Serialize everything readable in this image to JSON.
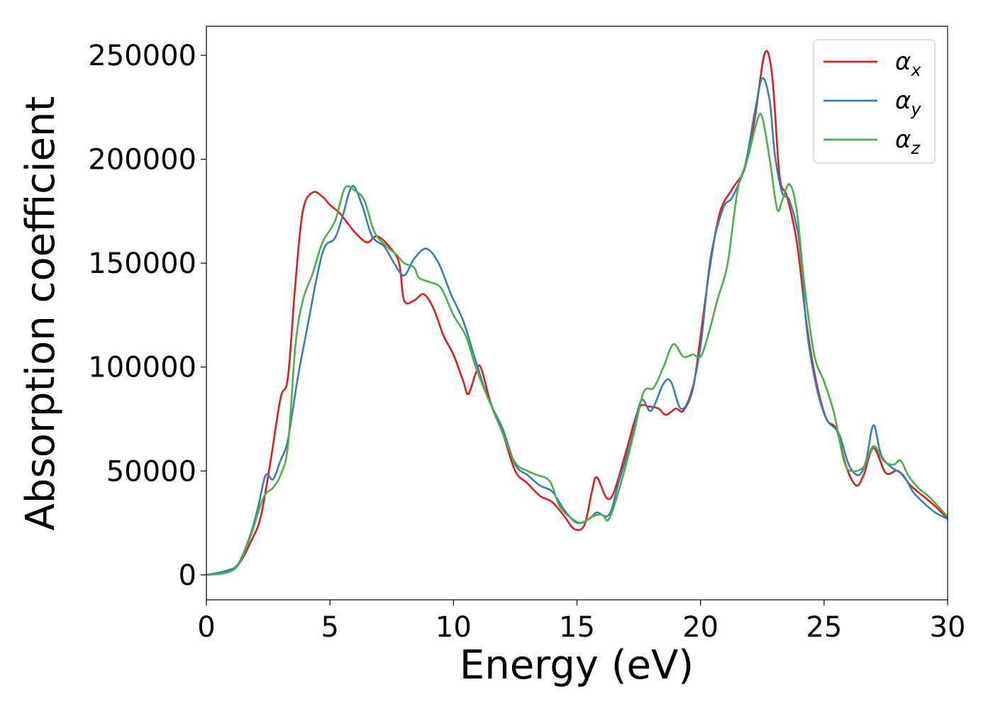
{
  "chart_data": {
    "type": "line",
    "title": "",
    "xlabel": "Energy (eV)",
    "ylabel": "Absorption coefficient",
    "xlim": [
      0,
      30
    ],
    "ylim": [
      -12000,
      264000
    ],
    "x_ticks": [
      0,
      5,
      10,
      15,
      20,
      25,
      30
    ],
    "y_ticks": [
      0,
      50000,
      100000,
      150000,
      200000,
      250000
    ],
    "grid": false,
    "legend": {
      "placement": "top-right"
    },
    "series": [
      {
        "name": "αx",
        "base": "α",
        "sub": "x",
        "color": "#e41a1c",
        "points": [
          [
            0,
            0
          ],
          [
            0.8,
            1500
          ],
          [
            1.3,
            5000
          ],
          [
            1.8,
            16000
          ],
          [
            2.2,
            28000
          ],
          [
            2.6,
            55000
          ],
          [
            3.0,
            85000
          ],
          [
            3.3,
            95000
          ],
          [
            3.6,
            140000
          ],
          [
            3.9,
            175000
          ],
          [
            4.3,
            184000
          ],
          [
            4.7,
            182000
          ],
          [
            5.0,
            178000
          ],
          [
            5.4,
            174000
          ],
          [
            6.0,
            165000
          ],
          [
            6.5,
            160000
          ],
          [
            6.9,
            163000
          ],
          [
            7.4,
            158000
          ],
          [
            7.8,
            150000
          ],
          [
            8.0,
            132000
          ],
          [
            8.4,
            132000
          ],
          [
            8.8,
            135000
          ],
          [
            9.2,
            128000
          ],
          [
            9.6,
            115000
          ],
          [
            10.0,
            106000
          ],
          [
            10.4,
            93000
          ],
          [
            10.6,
            87000
          ],
          [
            10.9,
            97000
          ],
          [
            11.1,
            100000
          ],
          [
            11.5,
            83000
          ],
          [
            12.0,
            68000
          ],
          [
            12.5,
            50000
          ],
          [
            13.0,
            44000
          ],
          [
            13.5,
            38000
          ],
          [
            14.0,
            35000
          ],
          [
            14.5,
            28000
          ],
          [
            14.9,
            22000
          ],
          [
            15.3,
            24000
          ],
          [
            15.6,
            40000
          ],
          [
            15.8,
            47000
          ],
          [
            16.2,
            37000
          ],
          [
            16.5,
            40000
          ],
          [
            17.0,
            60000
          ],
          [
            17.5,
            80000
          ],
          [
            17.9,
            81000
          ],
          [
            18.3,
            80000
          ],
          [
            18.6,
            77000
          ],
          [
            19.0,
            80000
          ],
          [
            19.3,
            79000
          ],
          [
            19.7,
            90000
          ],
          [
            20.0,
            115000
          ],
          [
            20.4,
            150000
          ],
          [
            20.8,
            175000
          ],
          [
            21.3,
            186000
          ],
          [
            21.8,
            196000
          ],
          [
            22.2,
            220000
          ],
          [
            22.6,
            251000
          ],
          [
            22.9,
            240000
          ],
          [
            23.2,
            192000
          ],
          [
            23.5,
            182000
          ],
          [
            23.9,
            160000
          ],
          [
            24.3,
            120000
          ],
          [
            24.7,
            92000
          ],
          [
            25.1,
            75000
          ],
          [
            25.5,
            70000
          ],
          [
            25.9,
            52000
          ],
          [
            26.3,
            43000
          ],
          [
            26.6,
            48000
          ],
          [
            27.0,
            61000
          ],
          [
            27.5,
            49000
          ],
          [
            28.0,
            50000
          ],
          [
            28.5,
            43000
          ],
          [
            29.0,
            38000
          ],
          [
            29.5,
            33000
          ],
          [
            30.0,
            27000
          ]
        ]
      },
      {
        "name": "αy",
        "base": "α",
        "sub": "y",
        "color": "#377eb8",
        "points": [
          [
            0,
            0
          ],
          [
            0.8,
            2000
          ],
          [
            1.3,
            5500
          ],
          [
            1.8,
            20000
          ],
          [
            2.1,
            33000
          ],
          [
            2.4,
            48000
          ],
          [
            2.7,
            46000
          ],
          [
            3.0,
            55000
          ],
          [
            3.3,
            65000
          ],
          [
            3.7,
            95000
          ],
          [
            4.1,
            120000
          ],
          [
            4.5,
            145000
          ],
          [
            4.8,
            158000
          ],
          [
            5.2,
            162000
          ],
          [
            5.5,
            172000
          ],
          [
            5.9,
            187000
          ],
          [
            6.3,
            178000
          ],
          [
            6.7,
            163000
          ],
          [
            7.2,
            158000
          ],
          [
            7.6,
            150000
          ],
          [
            8.0,
            144000
          ],
          [
            8.4,
            152000
          ],
          [
            8.9,
            157000
          ],
          [
            9.4,
            150000
          ],
          [
            9.9,
            135000
          ],
          [
            10.4,
            122000
          ],
          [
            10.9,
            103000
          ],
          [
            11.4,
            85000
          ],
          [
            12.0,
            70000
          ],
          [
            12.5,
            53000
          ],
          [
            13.0,
            48000
          ],
          [
            13.5,
            43000
          ],
          [
            14.0,
            40000
          ],
          [
            14.5,
            31000
          ],
          [
            15.0,
            25000
          ],
          [
            15.5,
            27000
          ],
          [
            15.8,
            30000
          ],
          [
            16.3,
            29000
          ],
          [
            16.7,
            45000
          ],
          [
            17.2,
            65000
          ],
          [
            17.6,
            84000
          ],
          [
            18.0,
            79000
          ],
          [
            18.5,
            92000
          ],
          [
            18.8,
            93000
          ],
          [
            19.2,
            80000
          ],
          [
            19.6,
            87000
          ],
          [
            20.0,
            110000
          ],
          [
            20.4,
            152000
          ],
          [
            20.9,
            176000
          ],
          [
            21.3,
            182000
          ],
          [
            21.8,
            197000
          ],
          [
            22.2,
            223000
          ],
          [
            22.5,
            239000
          ],
          [
            22.8,
            228000
          ],
          [
            23.0,
            203000
          ],
          [
            23.3,
            184000
          ],
          [
            23.6,
            180000
          ],
          [
            24.0,
            160000
          ],
          [
            24.3,
            118000
          ],
          [
            24.7,
            90000
          ],
          [
            25.1,
            75000
          ],
          [
            25.6,
            68000
          ],
          [
            26.0,
            53000
          ],
          [
            26.4,
            48000
          ],
          [
            26.7,
            55000
          ],
          [
            27.0,
            72000
          ],
          [
            27.3,
            58000
          ],
          [
            27.7,
            52000
          ],
          [
            28.2,
            48000
          ],
          [
            28.6,
            40000
          ],
          [
            29.0,
            35000
          ],
          [
            29.5,
            30000
          ],
          [
            30.0,
            27000
          ]
        ]
      },
      {
        "name": "αz",
        "base": "α",
        "sub": "z",
        "color": "#4daf4a",
        "points": [
          [
            0,
            0
          ],
          [
            0.8,
            1000
          ],
          [
            1.3,
            5000
          ],
          [
            1.8,
            19000
          ],
          [
            2.3,
            37000
          ],
          [
            2.7,
            42000
          ],
          [
            3.0,
            48000
          ],
          [
            3.3,
            62000
          ],
          [
            3.6,
            110000
          ],
          [
            3.9,
            132000
          ],
          [
            4.3,
            145000
          ],
          [
            4.7,
            160000
          ],
          [
            5.2,
            170000
          ],
          [
            5.6,
            186000
          ],
          [
            6.0,
            185000
          ],
          [
            6.4,
            180000
          ],
          [
            6.8,
            165000
          ],
          [
            7.3,
            158000
          ],
          [
            7.7,
            154000
          ],
          [
            8.0,
            150000
          ],
          [
            8.4,
            148000
          ],
          [
            8.6,
            143000
          ],
          [
            9.0,
            141000
          ],
          [
            9.5,
            138000
          ],
          [
            10.0,
            125000
          ],
          [
            10.5,
            115000
          ],
          [
            10.9,
            100000
          ],
          [
            11.4,
            85000
          ],
          [
            12.0,
            68000
          ],
          [
            12.5,
            54000
          ],
          [
            13.0,
            50000
          ],
          [
            13.4,
            48000
          ],
          [
            13.9,
            45000
          ],
          [
            14.3,
            33000
          ],
          [
            14.8,
            27000
          ],
          [
            15.2,
            25000
          ],
          [
            15.6,
            28000
          ],
          [
            16.0,
            29000
          ],
          [
            16.3,
            27000
          ],
          [
            16.8,
            45000
          ],
          [
            17.3,
            68000
          ],
          [
            17.7,
            88000
          ],
          [
            18.1,
            90000
          ],
          [
            18.5,
            100000
          ],
          [
            18.9,
            111000
          ],
          [
            19.3,
            105000
          ],
          [
            19.7,
            106000
          ],
          [
            20.0,
            105000
          ],
          [
            20.3,
            115000
          ],
          [
            20.7,
            133000
          ],
          [
            21.1,
            150000
          ],
          [
            21.5,
            185000
          ],
          [
            21.9,
            200000
          ],
          [
            22.3,
            219000
          ],
          [
            22.5,
            220000
          ],
          [
            22.8,
            200000
          ],
          [
            23.1,
            176000
          ],
          [
            23.3,
            180000
          ],
          [
            23.6,
            188000
          ],
          [
            23.9,
            175000
          ],
          [
            24.2,
            140000
          ],
          [
            24.6,
            106000
          ],
          [
            25.0,
            93000
          ],
          [
            25.4,
            78000
          ],
          [
            25.8,
            55000
          ],
          [
            26.1,
            50000
          ],
          [
            26.6,
            52000
          ],
          [
            27.0,
            62000
          ],
          [
            27.4,
            55000
          ],
          [
            27.8,
            53000
          ],
          [
            28.1,
            55000
          ],
          [
            28.4,
            48000
          ],
          [
            28.8,
            42000
          ],
          [
            29.3,
            37000
          ],
          [
            30.0,
            28000
          ]
        ]
      }
    ]
  }
}
